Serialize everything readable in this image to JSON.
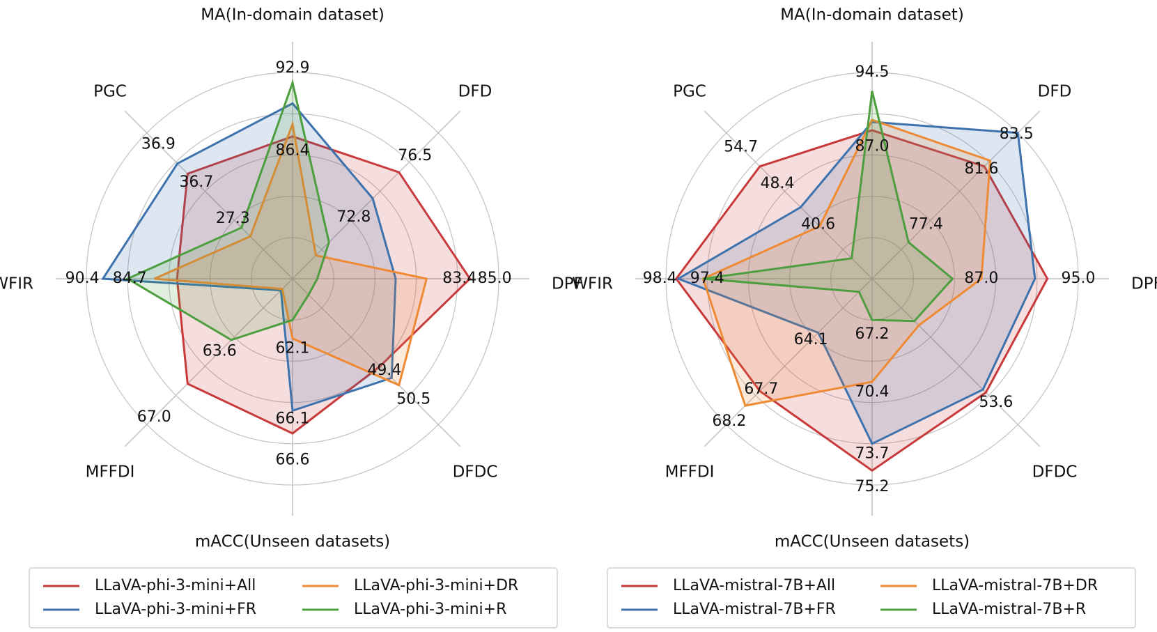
{
  "chart_data": [
    {
      "type": "radar",
      "axes": [
        "MA(In-domain dataset)",
        "DFD",
        "DPF",
        "DFDC",
        "mACC(Unseen datasets)",
        "MFFDI",
        "WFIR",
        "PGC"
      ],
      "series": [
        {
          "name": "LLaVA-phi-3-mini+All",
          "color": "#c8393a",
          "values": [
            0.69,
            0.73,
            0.86,
            0.6,
            0.75,
            0.72,
            0.56,
            0.72
          ]
        },
        {
          "name": "LLaVA-phi-3-mini+FR",
          "color": "#3d72ad",
          "values": [
            0.85,
            0.55,
            0.5,
            0.68,
            0.64,
            0.08,
            0.92,
            0.79
          ]
        },
        {
          "name": "LLaVA-phi-3-mini+DR",
          "color": "#ef8a34",
          "values": [
            0.75,
            0.16,
            0.65,
            0.73,
            0.29,
            0.07,
            0.67,
            0.29
          ]
        },
        {
          "name": "LLaVA-phi-3-mini+R",
          "color": "#4d9e3f",
          "values": [
            0.95,
            0.25,
            0.12,
            0.11,
            0.2,
            0.42,
            0.8,
            0.35
          ]
        }
      ],
      "value_labels": [
        {
          "text": "92.9",
          "axis": 0,
          "r": 1.02
        },
        {
          "text": "86.4",
          "axis": 0,
          "r": 0.62
        },
        {
          "text": "76.5",
          "axis": 1,
          "r": 0.84
        },
        {
          "text": "72.8",
          "axis": 1,
          "r": 0.42
        },
        {
          "text": "85.0",
          "axis": 2,
          "r": 0.98
        },
        {
          "text": "83.4",
          "axis": 2,
          "r": 0.81
        },
        {
          "text": "50.5",
          "axis": 3,
          "r": 0.83
        },
        {
          "text": "49.4",
          "axis": 3,
          "r": 0.63
        },
        {
          "text": "66.6",
          "axis": 4,
          "r": 0.88
        },
        {
          "text": "66.1",
          "axis": 4,
          "r": 0.68
        },
        {
          "text": "62.1",
          "axis": 4,
          "r": 0.34
        },
        {
          "text": "67.0",
          "axis": 5,
          "r": 0.95
        },
        {
          "text": "63.6",
          "axis": 5,
          "r": 0.5
        },
        {
          "text": "90.4",
          "axis": 6,
          "r": 1.02
        },
        {
          "text": "84.7",
          "axis": 6,
          "r": 0.79
        },
        {
          "text": "36.9",
          "axis": 7,
          "r": 0.92
        },
        {
          "text": "36.7",
          "axis": 7,
          "r": 0.66
        },
        {
          "text": "27.3",
          "axis": 7,
          "r": 0.41
        }
      ]
    },
    {
      "type": "radar",
      "axes": [
        "MA(In-domain dataset)",
        "DFD",
        "DPF",
        "DFDC",
        "mACC(Unseen datasets)",
        "MFFDI",
        "WFIR",
        "PGC"
      ],
      "series": [
        {
          "name": "LLaVA-mistral-7B+All",
          "color": "#c8393a",
          "values": [
            0.72,
            0.77,
            0.85,
            0.78,
            0.93,
            0.77,
            0.95,
            0.77
          ]
        },
        {
          "name": "LLaVA-mistral-7B+FR",
          "color": "#3d72ad",
          "values": [
            0.76,
            1.0,
            0.79,
            0.76,
            0.8,
            0.37,
            0.94,
            0.49
          ]
        },
        {
          "name": "LLaVA-mistral-7B+DR",
          "color": "#ef8a34",
          "values": [
            0.77,
            0.81,
            0.53,
            0.32,
            0.5,
            0.87,
            0.82,
            0.36
          ]
        },
        {
          "name": "LLaVA-mistral-7B+R",
          "color": "#4d9e3f",
          "values": [
            0.91,
            0.25,
            0.39,
            0.29,
            0.2,
            0.09,
            0.82,
            0.14
          ]
        }
      ],
      "value_labels": [
        {
          "text": "94.5",
          "axis": 0,
          "r": 1.0
        },
        {
          "text": "87.0",
          "axis": 0,
          "r": 0.64
        },
        {
          "text": "83.5",
          "axis": 1,
          "r": 0.99
        },
        {
          "text": "81.6",
          "axis": 1,
          "r": 0.75
        },
        {
          "text": "77.4",
          "axis": 1,
          "r": 0.37
        },
        {
          "text": "95.0",
          "axis": 2,
          "r": 1.0
        },
        {
          "text": "87.0",
          "axis": 2,
          "r": 0.53
        },
        {
          "text": "53.6",
          "axis": 3,
          "r": 0.85
        },
        {
          "text": "75.2",
          "axis": 4,
          "r": 1.01
        },
        {
          "text": "73.7",
          "axis": 4,
          "r": 0.85
        },
        {
          "text": "70.4",
          "axis": 4,
          "r": 0.55
        },
        {
          "text": "67.2",
          "axis": 4,
          "r": 0.27
        },
        {
          "text": "68.2",
          "axis": 5,
          "r": 0.98
        },
        {
          "text": "67.7",
          "axis": 5,
          "r": 0.76
        },
        {
          "text": "64.1",
          "axis": 5,
          "r": 0.42
        },
        {
          "text": "98.4",
          "axis": 6,
          "r": 1.03
        },
        {
          "text": "97.4",
          "axis": 6,
          "r": 0.8
        },
        {
          "text": "54.7",
          "axis": 7,
          "r": 0.9
        },
        {
          "text": "48.4",
          "axis": 7,
          "r": 0.65
        },
        {
          "text": "40.6",
          "axis": 7,
          "r": 0.37
        }
      ]
    }
  ]
}
